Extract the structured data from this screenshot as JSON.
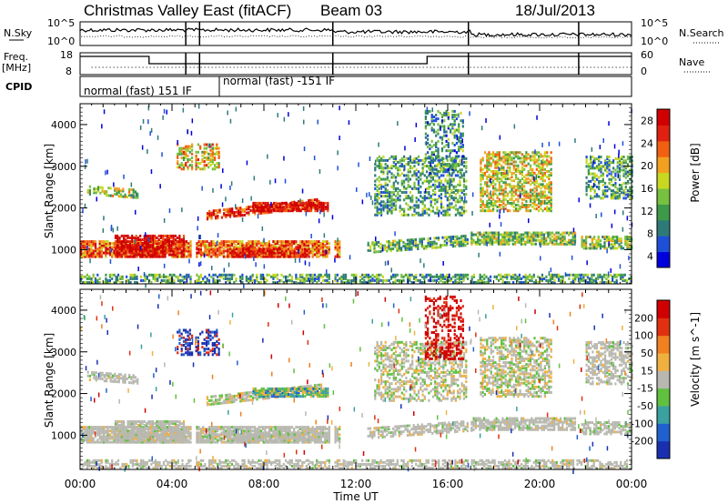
{
  "header": {
    "title": "Christmas Valley East (fitACF)",
    "beam": "Beam 03",
    "date": "18/Jul/2013"
  },
  "strip_labels": {
    "nsky": "N.Sky",
    "freq_line1": "Freq.",
    "freq_line2": "[MHz]",
    "cpid": "CPID",
    "nsearch": "N.Search",
    "nave": "Nave"
  },
  "strip_ticks": {
    "nsky_top": "10^5",
    "nsky_bottom": "10^0",
    "nsearch_top": "10^5",
    "nsearch_bottom": "10^0",
    "freq_top": "18",
    "freq_bottom": "8",
    "nave_top": "60",
    "nave_bottom": "0"
  },
  "cpid_segments": [
    {
      "label": "normal (fast) 151 IF",
      "start_hour": 0,
      "end_hour": 6.1
    },
    {
      "label": "normal (fast) -151 IF",
      "start_hour": 6.1,
      "end_hour": 24
    }
  ],
  "chart_data": [
    {
      "type": "heatmap",
      "title": "Power",
      "ylabel": "Slant Range [km]",
      "xlabel": "",
      "xlim": [
        "00:00",
        "24:00"
      ],
      "ylim": [
        180,
        4500
      ],
      "y_ticks": [
        1000,
        2000,
        3000,
        4000
      ],
      "colorbar": {
        "label": "Power [dB]",
        "ticks": [
          4,
          8,
          12,
          16,
          20,
          24,
          28
        ],
        "colors": [
          "#0000dd",
          "#1e4fd8",
          "#2e7a78",
          "#3e9a48",
          "#78c040",
          "#c8d820",
          "#f2a020",
          "#f06010",
          "#e02010",
          "#d00000"
        ]
      },
      "x_ticks": [
        "00:00",
        "04:00",
        "08:00",
        "12:00",
        "16:00",
        "20:00",
        "00:00"
      ]
    },
    {
      "type": "heatmap",
      "title": "Velocity",
      "ylabel": "Slant Range [km]",
      "xlabel": "Time UT",
      "xlim": [
        "00:00",
        "24:00"
      ],
      "ylim": [
        180,
        4500
      ],
      "y_ticks": [
        1000,
        2000,
        3000,
        4000
      ],
      "colorbar": {
        "label": "Velocity [m s^-1]",
        "ticks": [
          200,
          100,
          50,
          15,
          -15,
          -50,
          -100,
          -200
        ],
        "colors": [
          "#1a2fb0",
          "#2060d0",
          "#3aa0a0",
          "#60c040",
          "#b8b8b0",
          "#f0b040",
          "#f08020",
          "#e03010",
          "#d00000"
        ]
      },
      "x_ticks": [
        "00:00",
        "04:00",
        "08:00",
        "12:00",
        "16:00",
        "20:00",
        "00:00"
      ]
    }
  ],
  "colors": {
    "background": "#ffffff",
    "axis": "#000000",
    "ground_scatter": "#b8b8b0"
  }
}
